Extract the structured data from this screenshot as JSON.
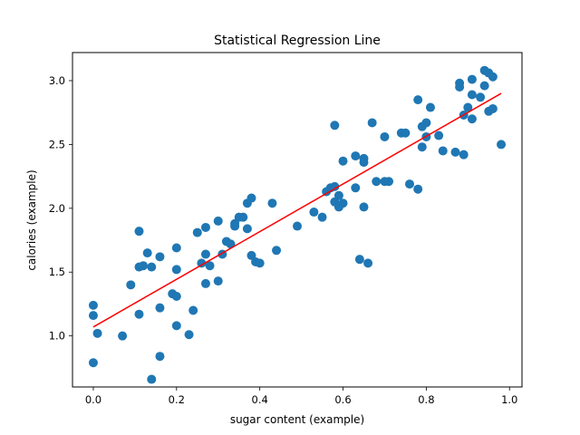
{
  "chart_data": {
    "type": "scatter",
    "title": "Statistical Regression Line",
    "xlabel": "sugar content (example)",
    "ylabel": "calories (example)",
    "xlim": [
      -0.05,
      1.03
    ],
    "ylim": [
      0.6,
      3.22
    ],
    "xticks": [
      0.0,
      0.2,
      0.4,
      0.6,
      0.8,
      1.0
    ],
    "xtick_labels": [
      "0.0",
      "0.2",
      "0.4",
      "0.6",
      "0.8",
      "1.0"
    ],
    "yticks": [
      1.0,
      1.5,
      2.0,
      2.5,
      3.0
    ],
    "ytick_labels": [
      "1.0",
      "1.5",
      "2.0",
      "2.5",
      "3.0"
    ],
    "grid": false,
    "legend": "none",
    "colors": {
      "points": "#1f77b4",
      "regression": "#ff0000"
    },
    "series": [
      {
        "kind": "scatter",
        "points": [
          [
            0.0,
            1.24
          ],
          [
            0.0,
            1.16
          ],
          [
            0.0,
            0.79
          ],
          [
            0.01,
            1.02
          ],
          [
            0.07,
            1.0
          ],
          [
            0.09,
            1.4
          ],
          [
            0.11,
            1.82
          ],
          [
            0.11,
            1.54
          ],
          [
            0.12,
            1.55
          ],
          [
            0.11,
            1.17
          ],
          [
            0.13,
            1.65
          ],
          [
            0.14,
            1.54
          ],
          [
            0.16,
            1.62
          ],
          [
            0.16,
            1.22
          ],
          [
            0.16,
            0.84
          ],
          [
            0.14,
            0.66
          ],
          [
            0.19,
            1.33
          ],
          [
            0.2,
            1.31
          ],
          [
            0.2,
            1.08
          ],
          [
            0.2,
            1.52
          ],
          [
            0.2,
            1.69
          ],
          [
            0.23,
            1.01
          ],
          [
            0.24,
            1.2
          ],
          [
            0.25,
            1.81
          ],
          [
            0.26,
            1.57
          ],
          [
            0.27,
            1.64
          ],
          [
            0.27,
            1.85
          ],
          [
            0.27,
            1.41
          ],
          [
            0.28,
            1.55
          ],
          [
            0.3,
            1.9
          ],
          [
            0.3,
            1.43
          ],
          [
            0.31,
            1.64
          ],
          [
            0.32,
            1.74
          ],
          [
            0.33,
            1.72
          ],
          [
            0.34,
            1.86
          ],
          [
            0.34,
            1.88
          ],
          [
            0.35,
            1.93
          ],
          [
            0.36,
            1.93
          ],
          [
            0.37,
            2.04
          ],
          [
            0.37,
            1.84
          ],
          [
            0.38,
            2.08
          ],
          [
            0.38,
            1.63
          ],
          [
            0.39,
            1.58
          ],
          [
            0.4,
            1.57
          ],
          [
            0.43,
            2.04
          ],
          [
            0.44,
            1.67
          ],
          [
            0.49,
            1.86
          ],
          [
            0.53,
            1.97
          ],
          [
            0.55,
            1.93
          ],
          [
            0.56,
            2.13
          ],
          [
            0.57,
            2.16
          ],
          [
            0.58,
            2.17
          ],
          [
            0.58,
            2.05
          ],
          [
            0.58,
            2.65
          ],
          [
            0.59,
            2.01
          ],
          [
            0.59,
            2.1
          ],
          [
            0.6,
            2.37
          ],
          [
            0.6,
            2.04
          ],
          [
            0.63,
            2.41
          ],
          [
            0.63,
            2.16
          ],
          [
            0.64,
            1.6
          ],
          [
            0.65,
            2.39
          ],
          [
            0.65,
            2.36
          ],
          [
            0.65,
            2.01
          ],
          [
            0.66,
            1.57
          ],
          [
            0.67,
            2.67
          ],
          [
            0.68,
            2.21
          ],
          [
            0.7,
            2.21
          ],
          [
            0.7,
            2.56
          ],
          [
            0.71,
            2.21
          ],
          [
            0.74,
            2.59
          ],
          [
            0.75,
            2.59
          ],
          [
            0.76,
            2.19
          ],
          [
            0.78,
            2.85
          ],
          [
            0.78,
            2.15
          ],
          [
            0.79,
            2.64
          ],
          [
            0.79,
            2.48
          ],
          [
            0.8,
            2.67
          ],
          [
            0.8,
            2.56
          ],
          [
            0.81,
            2.79
          ],
          [
            0.83,
            2.57
          ],
          [
            0.84,
            2.45
          ],
          [
            0.87,
            2.44
          ],
          [
            0.88,
            2.95
          ],
          [
            0.88,
            2.98
          ],
          [
            0.89,
            2.73
          ],
          [
            0.89,
            2.42
          ],
          [
            0.9,
            2.79
          ],
          [
            0.91,
            2.7
          ],
          [
            0.91,
            2.89
          ],
          [
            0.91,
            3.01
          ],
          [
            0.93,
            2.87
          ],
          [
            0.94,
            2.96
          ],
          [
            0.94,
            3.08
          ],
          [
            0.95,
            3.06
          ],
          [
            0.95,
            2.76
          ],
          [
            0.96,
            3.03
          ],
          [
            0.96,
            2.78
          ],
          [
            0.98,
            2.5
          ]
        ]
      },
      {
        "kind": "line",
        "points": [
          [
            0.0,
            1.07
          ],
          [
            0.98,
            2.9
          ]
        ]
      }
    ]
  }
}
